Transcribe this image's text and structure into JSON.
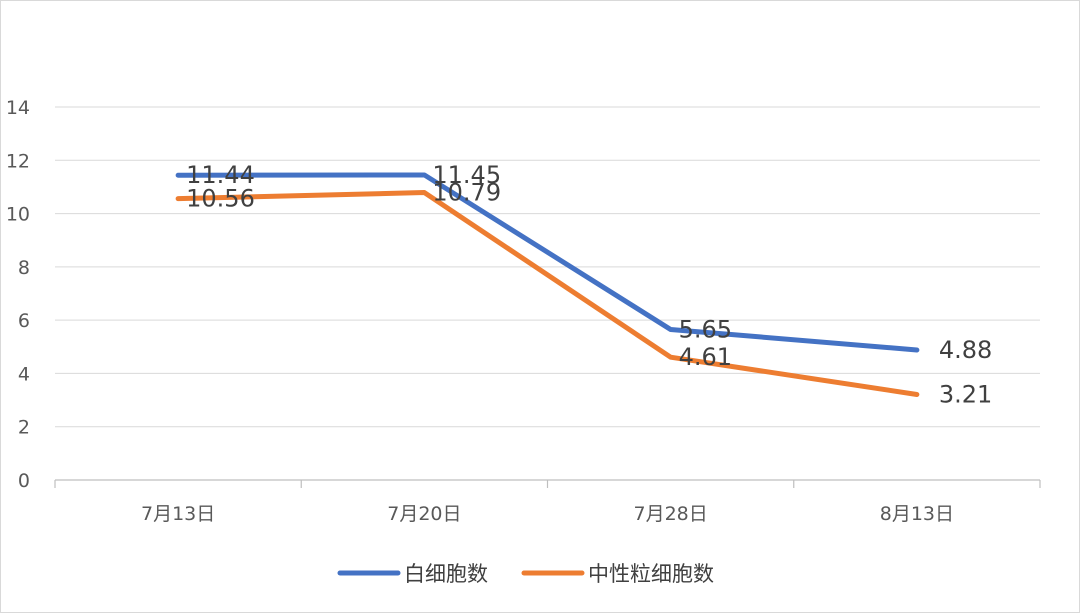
{
  "chart_data": {
    "type": "line",
    "title": "",
    "xlabel": "",
    "ylabel": "",
    "categories": [
      "7月13日",
      "7月20日",
      "7月28日",
      "8月13日"
    ],
    "ylim": [
      0,
      14
    ],
    "yticks": [
      0,
      2,
      4,
      6,
      8,
      10,
      12,
      14
    ],
    "grid": true,
    "legend_position": "bottom",
    "series": [
      {
        "name": "白细胞数",
        "color": "#4472C4",
        "values": [
          11.44,
          11.45,
          5.65,
          4.88
        ],
        "labels": [
          "11.44",
          "11.45",
          "5.65",
          "4.88"
        ]
      },
      {
        "name": "中性粒细胞数",
        "color": "#ED7D31",
        "values": [
          10.56,
          10.79,
          4.61,
          3.21
        ],
        "labels": [
          "10.56",
          "10.79",
          "4.61",
          "3.21"
        ]
      }
    ]
  }
}
